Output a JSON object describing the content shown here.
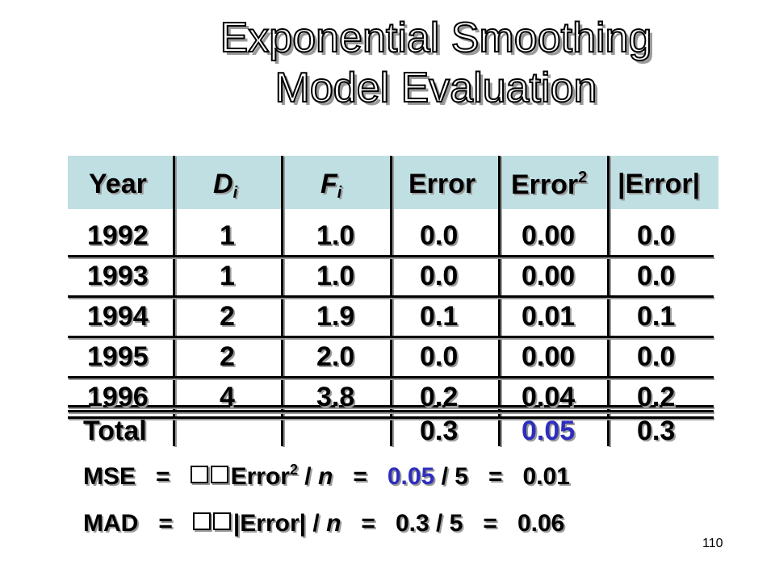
{
  "title": {
    "line1": "Exponential Smoothing",
    "line2": "Model Evaluation"
  },
  "table": {
    "headers": {
      "year": "Year",
      "d": "D",
      "d_sub": "i",
      "f": "F",
      "f_sub": "i",
      "error": "Error",
      "error2": "Error",
      "error2_sup": "2",
      "abs_error": "|Error|"
    },
    "rows": [
      {
        "year": "1992",
        "d": "1",
        "f": "1.0",
        "error": "0.0",
        "error2": "0.00",
        "abs_error": "0.0"
      },
      {
        "year": "1993",
        "d": "1",
        "f": "1.0",
        "error": "0.0",
        "error2": "0.00",
        "abs_error": "0.0"
      },
      {
        "year": "1994",
        "d": "2",
        "f": "1.9",
        "error": "0.1",
        "error2": "0.01",
        "abs_error": "0.1"
      },
      {
        "year": "1995",
        "d": "2",
        "f": "2.0",
        "error": "0.0",
        "error2": "0.00",
        "abs_error": "0.0"
      },
      {
        "year": "1996",
        "d": "4",
        "f": "3.8",
        "error": "0.2",
        "error2": "0.04",
        "abs_error": "0.2"
      }
    ],
    "total": {
      "label": "Total",
      "error": "0.3",
      "error2": "0.05",
      "abs_error": "0.3"
    },
    "highlight_color": "#2e2ebd"
  },
  "formulas": {
    "mse": {
      "lhs": "MSE",
      "eq1": "=",
      "term": "Error",
      "sup": "2",
      "div": "/ ",
      "n": "n",
      "eq2": "=",
      "num": "0.05",
      "rest": "/ 5",
      "eq3": "=",
      "result": "0.01"
    },
    "mad": {
      "lhs": "MAD",
      "eq1": "=",
      "term": "|Error|",
      "div": "/ ",
      "n": "n",
      "eq2": "=",
      "num": "0.3",
      "rest": "/ 5",
      "eq3": "=",
      "result": "0.06"
    }
  },
  "page_number": "110"
}
